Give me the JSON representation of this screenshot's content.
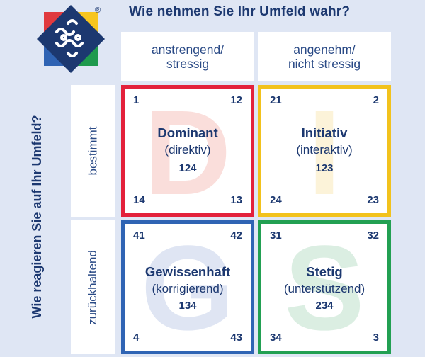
{
  "title": "Wie nehmen Sie Ihr Umfeld wahr?",
  "side_title": "Wie reagieren Sie auf Ihr Umfeld?",
  "columns": [
    {
      "label": "anstrengend/\nstressig"
    },
    {
      "label": "angenehm/\nnicht stressig"
    }
  ],
  "rows": [
    {
      "label": "bestimmt"
    },
    {
      "label": "zurückhaltend"
    }
  ],
  "logo": {
    "registered_mark": "®",
    "colors": [
      "#e03a3e",
      "#f7c51e",
      "#2f63b3",
      "#1f9a4d",
      "#1c3870"
    ]
  },
  "quadrants": [
    {
      "letter": "D",
      "name": "Dominant",
      "subtitle": "(direktiv)",
      "code": "124",
      "top_left": "1",
      "top_right": "12",
      "bottom_left": "14",
      "bottom_right": "13",
      "border_color": "#e3213b",
      "letter_color": "#f08a7f"
    },
    {
      "letter": "I",
      "name": "Initiativ",
      "subtitle": "(interaktiv)",
      "code": "123",
      "top_left": "21",
      "top_right": "2",
      "bottom_left": "24",
      "bottom_right": "23",
      "border_color": "#f2c21c",
      "letter_color": "#f5d77a"
    },
    {
      "letter": "G",
      "name": "Gewissenhaft",
      "subtitle": "(korrigierend)",
      "code": "134",
      "top_left": "41",
      "top_right": "42",
      "bottom_left": "4",
      "bottom_right": "43",
      "border_color": "#2f64b4",
      "letter_color": "#8fa6d6"
    },
    {
      "letter": "S",
      "name": "Stetig",
      "subtitle": "(unterstützend)",
      "code": "234",
      "top_left": "31",
      "top_right": "32",
      "bottom_left": "34",
      "bottom_right": "3",
      "border_color": "#22a052",
      "letter_color": "#82c59a"
    }
  ]
}
